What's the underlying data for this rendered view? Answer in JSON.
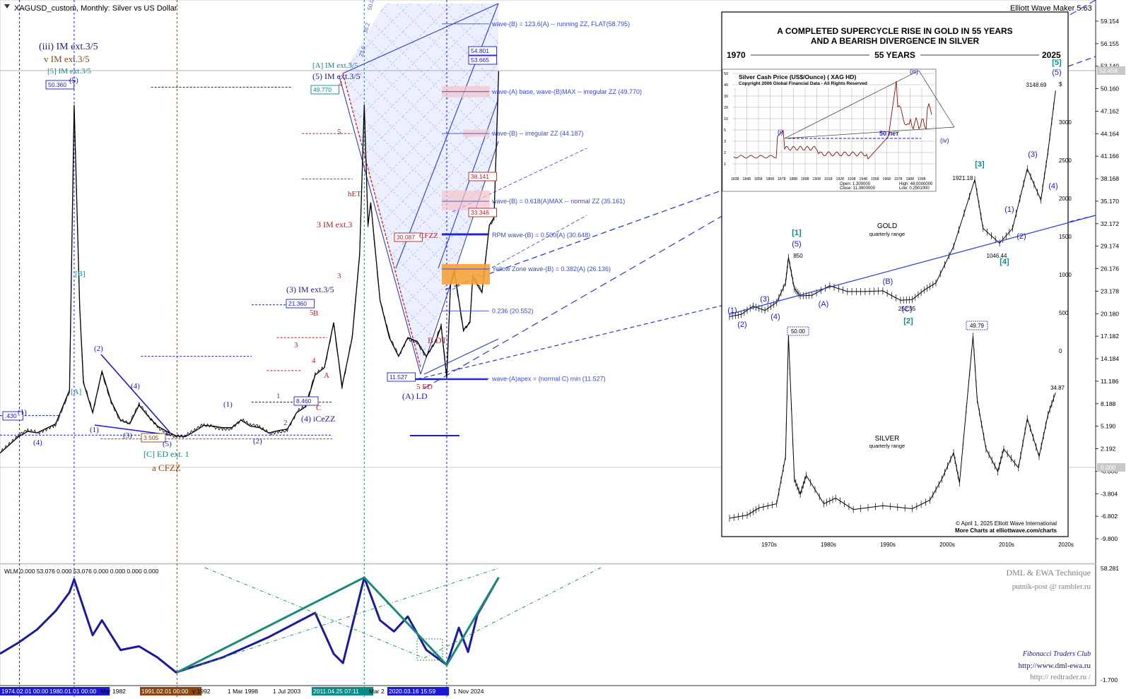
{
  "window": {
    "symbol_title": "XAGUSD_custom, Monthly:  Silver vs US Dollar",
    "tool_title": "Elliott Wave Maker 5.63",
    "current_price": "52.458"
  },
  "price_axis": [
    "59.154",
    "56.155",
    "53.140",
    "50.160",
    "47.162",
    "44.164",
    "41.166",
    "38.168",
    "35.170",
    "32.172",
    "29.174",
    "26.176",
    "23.178",
    "20.180",
    "17.182",
    "14.184",
    "11.186",
    "8.188",
    "5.190",
    "2.192",
    "-0.806",
    "-3.804",
    "-6.802",
    "-9.800"
  ],
  "indicator_axis": [
    "58.281",
    "-1.700"
  ],
  "time_axis": [
    "1974.02.01 00:00",
    "1980.01.01 00:00",
    "Mar 1982",
    "1991.02.01 00:00",
    "v 1992",
    "1 Mar 1998",
    "1 Jul 2003",
    "2011.04.25 07:11",
    "Mar 2",
    "2020.03.16 15:59",
    "1 Nov 2024"
  ],
  "wave_labels": [
    {
      "t": "(iii) IM ext.3/5",
      "c": "#1a1aa0"
    },
    {
      "t": "v IM ext.3/5",
      "c": "#8b4513"
    },
    {
      "t": "[5] IM ext.3/5",
      "c": "#0a8a8a"
    },
    {
      "t": "[A] IM ext.3/5",
      "c": "#0a8a8a"
    },
    {
      "t": "(5) IM ext.3/5",
      "c": "#1a1aa0"
    },
    {
      "t": "(3) IM ext.3/5",
      "c": "#1a1aa0"
    },
    {
      "t": "(4) iCeZZ",
      "c": "#1a1aa0"
    },
    {
      "t": "[C] ED ext. 1",
      "c": "#0a8a8a"
    },
    {
      "t": "a CFZZ",
      "c": "#8b4513"
    },
    {
      "t": "3 IM ext.3",
      "c": "#b22222"
    },
    {
      "t": "(A) LD",
      "c": "#1a1aa0"
    },
    {
      "t": "5 ED",
      "c": "#b22222"
    },
    {
      "t": "B DT",
      "c": "#b22222"
    },
    {
      "t": "hET",
      "c": "#b22222"
    },
    {
      "t": "CFZZ",
      "c": "#b22222"
    },
    {
      "t": "[B]",
      "c": "#0a8a8a"
    },
    {
      "t": "[A]",
      "c": "#0a8a8a"
    }
  ],
  "small_wave_marks": [
    "(1)",
    "(2)",
    "(3)",
    "(4)",
    "(5)",
    "1",
    "2",
    "3",
    "4",
    "5",
    "A",
    "B",
    "C"
  ],
  "price_boxes": [
    "50.360",
    "49.770",
    "21.360",
    "8.460",
    "3.505",
    "11.527",
    "30.087",
    "54.801",
    "53.665",
    "38.141",
    "33.346",
    ".430"
  ],
  "fib_levels": [
    {
      "label": "wave-(B) = 123.6(A) -- running ZZ, FLAT(58.795)",
      "value": 58.795
    },
    {
      "label": "wave-(A) base, wave-(B)MAX -- irregular ZZ (49.770)",
      "value": 49.77
    },
    {
      "label": "wave-(B) -- irregular ZZ (44.187)",
      "value": 44.187
    },
    {
      "label": "wave-(B) = 0.618(A)MAX -- normal ZZ (35.161)",
      "value": 35.161
    },
    {
      "label": "RPM wave-(B) = 0.500(A) (30.648)",
      "value": 30.648
    },
    {
      "label": "Yellow Zone wave-(B) = 0.382(A) (26.136)",
      "value": 26.136
    },
    {
      "label": "0.236 (20.552)",
      "value": 20.552
    },
    {
      "label": "wave-(A)apex = (normal C) min (11.527)",
      "value": 11.527
    }
  ],
  "fan_labels": [
    "50.0",
    "38.2",
    "23.6"
  ],
  "indicator": {
    "header": "WLM 0.000 53.076 0.000 53.076 0.000 0.000 0.000 0.000",
    "credits": [
      "DML & EWA Technique",
      "putnik-post @ rambler.ru",
      "Fibonacci    Traders    Club",
      "http://www.dml-ewa.ru",
      "http://  redtrader.ru  /"
    ]
  },
  "inset": {
    "title_line1": "A COMPLETED SUPERCYCLE RISE IN GOLD IN 55 YEARS",
    "title_line2": "AND A BEARISH DIVERGENCE IN SILVER",
    "year_start": "1970",
    "span": "55 YEARS",
    "year_end": "2025",
    "gold_label": "GOLD",
    "gold_sub": "quarterly range",
    "silver_label": "SILVER",
    "silver_sub": "quarterly range",
    "gold_prices": [
      "850",
      "1921.18",
      "3148.69",
      "1046.44",
      "252.55"
    ],
    "gold_waves": [
      "(1)",
      "(2)",
      "(3)",
      "(4)",
      "(5)",
      "[1]",
      "(A)",
      "(B)",
      "(C)",
      "[2]",
      "[3]",
      "(1)",
      "(2)",
      "(3)",
      "(4)",
      "[4]",
      "(5)",
      "[5]"
    ],
    "silver_prices": [
      "50.00",
      "49.79",
      "34.87"
    ],
    "right_axis": [
      "$",
      "3000",
      "2500",
      "2000",
      "1500",
      "1000",
      "500",
      "0"
    ],
    "decades": [
      "1970s",
      "1980s",
      "1990s",
      "2000s",
      "2010s",
      "2020s"
    ],
    "copyright": "© April 1, 2025 Elliott Wave International",
    "more": "More Charts at elliottwave.com/charts",
    "mini": {
      "title": "Silver Cash Price (US$/Ounce) (   XAG  HD)",
      "copyright": "Copyright 2006 Global Financial Data - All Rights Reserved",
      "span_label": "50 лет",
      "waves": [
        "(i)",
        "(iii)",
        "(iv)"
      ],
      "open": "Open:  1.300000",
      "high": "High:  48.0000000",
      "close": "Close:  11.3900000",
      "low": "Low:  0.2501000",
      "y_ticks": [
        "50",
        "40",
        "30",
        "20",
        "10",
        "5",
        "3",
        "2",
        "1"
      ],
      "x_ticks": [
        "1838",
        "1848",
        "1858",
        "1868",
        "1878",
        "1888",
        "1898",
        "1908",
        "1918",
        "1928",
        "1938",
        "1948",
        "1958",
        "1968",
        "1978",
        "1988",
        "1998"
      ]
    }
  },
  "chart_data": [
    {
      "type": "line",
      "title": "XAGUSD_custom, Monthly:  Silver vs US Dollar",
      "x": [
        1972,
        1974,
        1975,
        1976,
        1978,
        1979.5,
        1980.0,
        1980.6,
        1981,
        1982,
        1983,
        1984,
        1985,
        1986,
        1987,
        1988,
        1989,
        1990,
        1991,
        1992,
        1993,
        1994,
        1995,
        1996,
        1997,
        1998,
        1999,
        2000,
        2001,
        2002,
        2003,
        2004,
        2005,
        2006,
        2007,
        2008,
        2008.9,
        2009.5,
        2010,
        2010.8,
        2011.3,
        2011.7,
        2012,
        2013,
        2013.5,
        2014,
        2015,
        2016,
        2017,
        2018,
        2019,
        2019.6,
        2020.2,
        2020.6,
        2021,
        2022,
        2022.7,
        2023,
        2024,
        2024.8,
        2025.3,
        2025.8
      ],
      "y": [
        1.6,
        3.8,
        4.5,
        4.3,
        5.5,
        10,
        48,
        21,
        11,
        7.0,
        12.5,
        8.5,
        6.0,
        5.5,
        8.0,
        6.5,
        5.2,
        4.5,
        3.9,
        3.8,
        4.5,
        5.3,
        5.2,
        5.0,
        5.0,
        6.0,
        5.2,
        5.0,
        4.3,
        4.6,
        4.8,
        7.0,
        7.8,
        12,
        13,
        19,
        10.5,
        14,
        17,
        28,
        48,
        32,
        35,
        22,
        19.5,
        17,
        14.5,
        17,
        16.5,
        14.5,
        16.5,
        18.5,
        11.6,
        24,
        26,
        18,
        19,
        25,
        23,
        32,
        33,
        52.5
      ],
      "ylim": [
        -9.8,
        59.154
      ]
    },
    {
      "type": "line",
      "title": "WLM 0.000 53.076 0.000 53.076 0.000 0.000 0.000 0.000",
      "x": [
        1972,
        1974,
        1976,
        1978,
        1979.5,
        1980.0,
        1982,
        1983,
        1985,
        1987,
        1989,
        1991,
        1996,
        2001,
        2006,
        2008,
        2009,
        2011.3,
        2013,
        2014.5,
        2016,
        2018,
        2020.2,
        2021.5,
        2022.5,
        2023.5,
        2025.8
      ],
      "y": [
        12,
        18,
        25,
        35,
        45,
        52,
        22,
        30,
        14,
        16,
        10,
        2,
        10,
        21,
        34,
        12,
        7,
        53,
        30,
        24,
        32,
        14,
        6,
        26,
        13,
        33,
        53
      ],
      "ylim": [
        -1.7,
        58.281
      ]
    }
  ]
}
